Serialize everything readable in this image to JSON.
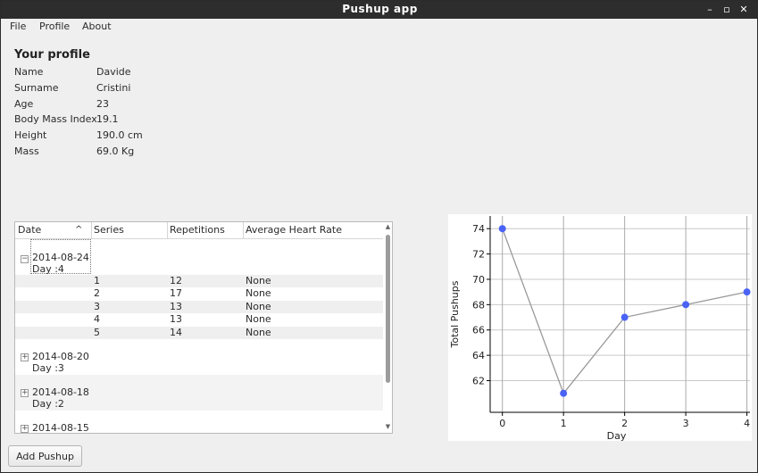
{
  "window": {
    "title": "Pushup app",
    "controls": {
      "minimize": "–",
      "maximize": "▫",
      "close": "✕"
    }
  },
  "menu": {
    "file": "File",
    "profile": "Profile",
    "about": "About"
  },
  "profile": {
    "heading": "Your profile",
    "fields": [
      {
        "label": "Name",
        "value": "Davide"
      },
      {
        "label": "Surname",
        "value": "Cristini"
      },
      {
        "label": "Age",
        "value": "23"
      },
      {
        "label": "Body Mass Index",
        "value": "19.1"
      },
      {
        "label": "Height",
        "value": "190.0 cm"
      },
      {
        "label": "Mass",
        "value": "69.0 Kg"
      }
    ]
  },
  "table": {
    "columns": [
      "Date",
      "Series",
      "Repetitions",
      "Average Heart Rate"
    ],
    "sort_indicator": "^",
    "groups": [
      {
        "date": "2014-08-24",
        "day": "Day :4",
        "expanded": true,
        "rows": [
          {
            "series": "1",
            "repetitions": "12",
            "heart_rate": "None"
          },
          {
            "series": "2",
            "repetitions": "17",
            "heart_rate": "None"
          },
          {
            "series": "3",
            "repetitions": "13",
            "heart_rate": "None"
          },
          {
            "series": "4",
            "repetitions": "13",
            "heart_rate": "None"
          },
          {
            "series": "5",
            "repetitions": "14",
            "heart_rate": "None"
          }
        ]
      },
      {
        "date": "2014-08-20",
        "day": "Day :3",
        "expanded": false
      },
      {
        "date": "2014-08-18",
        "day": "Day :2",
        "expanded": false
      },
      {
        "date": "2014-08-15",
        "day": "",
        "expanded": false
      }
    ]
  },
  "chart_data": {
    "type": "line",
    "x": [
      0,
      1,
      2,
      3,
      4
    ],
    "series": [
      {
        "values": [
          74,
          61,
          67,
          68,
          69
        ]
      }
    ],
    "xlabel": "Day",
    "ylabel": "Total Pushups",
    "xlim": [
      -0.2,
      4.05
    ],
    "ylim": [
      59.5,
      75
    ],
    "x_ticks": [
      "0",
      "1",
      "2",
      "3",
      "4"
    ],
    "y_ticks": [
      "62",
      "64",
      "66",
      "68",
      "70",
      "72",
      "74"
    ],
    "grid": true,
    "line_color": "#999999",
    "marker_color": "#4a63f5"
  },
  "buttons": {
    "add_pushup": "Add Pushup"
  }
}
